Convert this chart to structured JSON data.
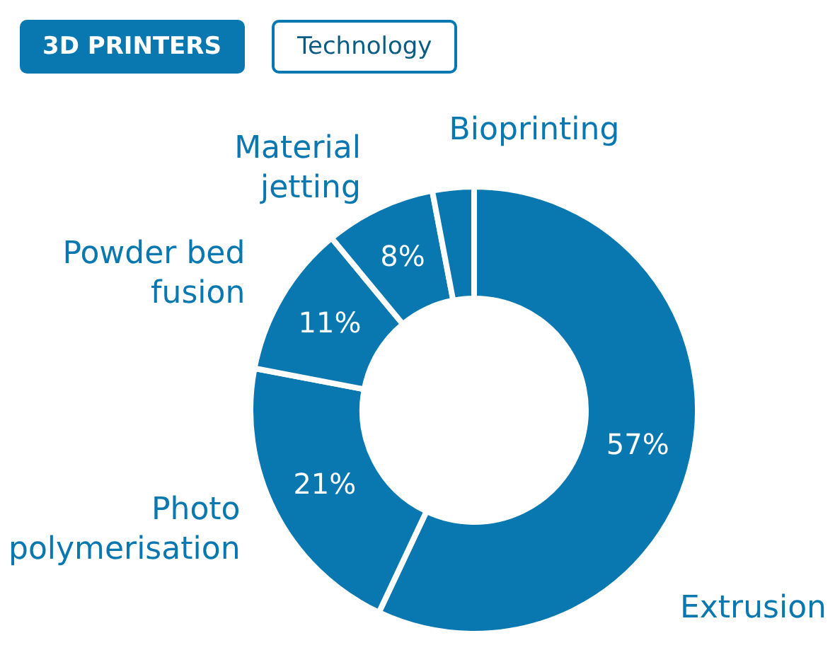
{
  "chart_data": {
    "type": "donut",
    "title": "3D PRINTERS",
    "subtitle": "Technology",
    "categories": [
      "Extrusion",
      "Photo polymerisation",
      "Powder bed fusion",
      "Material jetting",
      "Bioprinting"
    ],
    "values": [
      57,
      21,
      11,
      8,
      3
    ],
    "colors": [
      "#0a78b0",
      "#0a78b0",
      "#0a78b0",
      "#0a78b0",
      "#0a78b0"
    ],
    "value_labels": [
      "57%",
      "21%",
      "11%",
      "8%",
      null
    ],
    "legend": false
  }
}
